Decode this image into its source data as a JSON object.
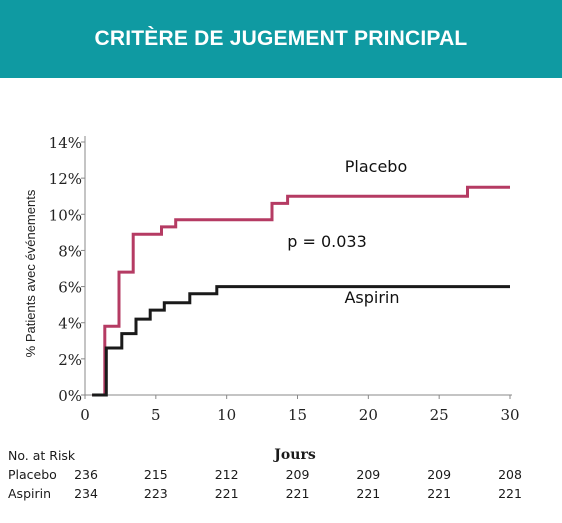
{
  "header": {
    "title": "CRITÈRE DE JUGEMENT PRINCIPAL"
  },
  "colors": {
    "banner": "#0f9aa2",
    "placebo": "#b53b63",
    "aspirin": "#1a1a1a",
    "axis": "#888888"
  },
  "chart_data": {
    "type": "line",
    "subtype": "step",
    "title": "",
    "xlabel": "Jours",
    "ylabel": "% Patients avec événements",
    "xlim": [
      0,
      30
    ],
    "ylim": [
      0,
      14
    ],
    "x_ticks": [
      0,
      5,
      10,
      15,
      20,
      25,
      30
    ],
    "y_ticks": [
      0,
      2,
      4,
      6,
      8,
      10,
      12,
      14
    ],
    "x_tick_labels": [
      "0",
      "5",
      "10",
      "15",
      "20",
      "25",
      "30"
    ],
    "y_tick_labels": [
      "0%",
      "2%",
      "4%",
      "6%",
      "8%",
      "10%",
      "12%",
      "14%"
    ],
    "grid": false,
    "annotation": "p = 0.033",
    "series": [
      {
        "name": "Placebo",
        "color": "#b53b63",
        "points": [
          [
            0.5,
            0
          ],
          [
            1.4,
            0
          ],
          [
            1.4,
            3.8
          ],
          [
            2.4,
            3.8
          ],
          [
            2.4,
            6.8
          ],
          [
            3.4,
            6.8
          ],
          [
            3.4,
            8.9
          ],
          [
            5.4,
            8.9
          ],
          [
            5.4,
            9.3
          ],
          [
            6.4,
            9.3
          ],
          [
            6.4,
            9.7
          ],
          [
            13.2,
            9.7
          ],
          [
            13.2,
            10.6
          ],
          [
            14.3,
            10.6
          ],
          [
            14.3,
            11.0
          ],
          [
            27.0,
            11.0
          ],
          [
            27.0,
            11.5
          ],
          [
            30,
            11.5
          ]
        ]
      },
      {
        "name": "Aspirin",
        "color": "#1a1a1a",
        "points": [
          [
            0.5,
            0
          ],
          [
            1.5,
            0
          ],
          [
            1.5,
            2.6
          ],
          [
            2.6,
            2.6
          ],
          [
            2.6,
            3.4
          ],
          [
            3.6,
            3.4
          ],
          [
            3.6,
            4.2
          ],
          [
            4.6,
            4.2
          ],
          [
            4.6,
            4.7
          ],
          [
            5.6,
            4.7
          ],
          [
            5.6,
            5.1
          ],
          [
            7.4,
            5.1
          ],
          [
            7.4,
            5.6
          ],
          [
            9.3,
            5.6
          ],
          [
            9.3,
            6.0
          ],
          [
            30,
            6.0
          ]
        ]
      }
    ]
  },
  "risk_table": {
    "title": "No. at Risk",
    "days": [
      0,
      5,
      10,
      15,
      20,
      25,
      30
    ],
    "rows": [
      {
        "label": "Placebo",
        "values": [
          "236",
          "215",
          "212",
          "209",
          "209",
          "209",
          "208"
        ]
      },
      {
        "label": "Aspirin",
        "values": [
          "234",
          "223",
          "221",
          "221",
          "221",
          "221",
          "221"
        ]
      }
    ]
  }
}
